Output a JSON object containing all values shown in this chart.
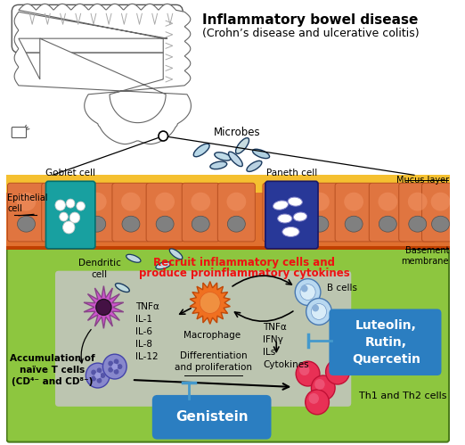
{
  "title": "Inflammatory bowel disease",
  "subtitle": "(Crohn’s disease and ulcerative colitis)",
  "bg_color": "#ffffff",
  "green_bg": "#8dc63f",
  "orange_layer": "#e07030",
  "yellow_layer": "#f5c030",
  "dark_green": "#5a8a20",
  "gray_panel": "#c8c8c8",
  "blue_box_color": "#2b7ec1",
  "recruit_text_line1": "Recruit inflammatory cells and",
  "recruit_text_line2": "produce proinflammatory cytokines",
  "recruit_color": "#ee1111",
  "labels": {
    "goblet_cell": "Goblet cell",
    "paneth_cell": "Paneth cell",
    "epithelial_cell": "Epithelial\ncell",
    "microbes": "Microbes",
    "mucus_layer": "Mucus layer",
    "basement_membrane": "Basement\nmembrane",
    "dendritic_cell": "Dendritic\ncell",
    "macrophage": "Macrophage",
    "b_cells": "B cells",
    "cytokines_left": "TNFα\nIL-1\nIL-6\nIL-8\nIL-12",
    "cytokines_right": "TNFα\nIFNγ\nILs\nCytokines",
    "accumulation": "Accumulation of\nnaïve T cells\n(CD⁴⁻ and CD⁸⁻)",
    "diff_prolif": "Differentiation\nand proliferation",
    "th_cells": "Th1 and Th2 cells",
    "genistein": "Genistein",
    "luteolin": "Luteolin,\nRutin,\nQuercetin"
  },
  "figsize": [
    5.22,
    4.99
  ],
  "dpi": 100
}
